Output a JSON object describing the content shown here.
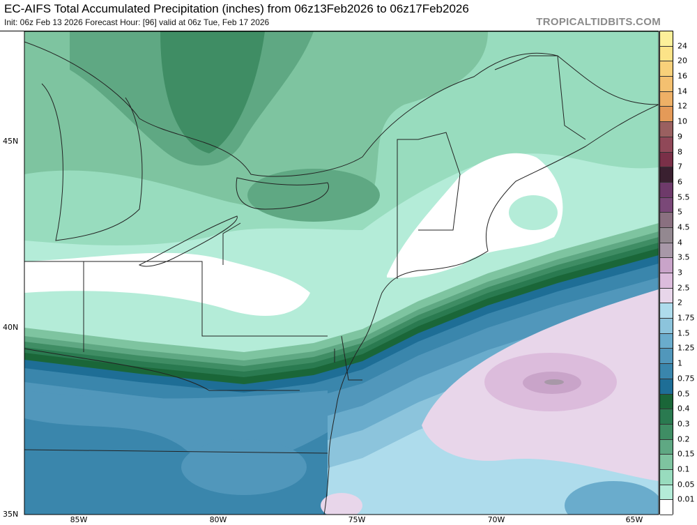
{
  "header": {
    "title": "EC-AIFS Total Accumulated Precipitation (inches) from 06z13Feb2026 to 06z17Feb2026",
    "subtitle": "Init: 06z Feb 13 2026   Forecast Hour: [96]   valid at 06z Tue, Feb 17 2026",
    "brand": "TROPICALTIDBITS.COM"
  },
  "map": {
    "latitude_labels": [
      "45N",
      "40N",
      "35N"
    ],
    "longitude_labels": [
      "85W",
      "80W",
      "75W",
      "70W",
      "65W"
    ]
  },
  "colorbar": {
    "labels": [
      "24",
      "20",
      "16",
      "14",
      "12",
      "10",
      "9",
      "8",
      "7",
      "6",
      "5.5",
      "5",
      "4.5",
      "4",
      "3.5",
      "3",
      "2.5",
      "2",
      "1.75",
      "1.5",
      "1.25",
      "1",
      "0.75",
      "0.5",
      "0.4",
      "0.3",
      "0.2",
      "0.15",
      "0.1",
      "0.05",
      "0.01"
    ],
    "colors": [
      "#fcf09a",
      "#fce388",
      "#f8d07a",
      "#f4c070",
      "#eeb066",
      "#e49a58",
      "#9a6060",
      "#904858",
      "#7a3048",
      "#3a2030",
      "#6e3a6a",
      "#7a4878",
      "#8a7080",
      "#938890",
      "#a898a8",
      "#c9a4c9",
      "#dcbcdc",
      "#e8d6ea",
      "#aedcec",
      "#8cc4dc",
      "#6aaccc",
      "#5197bb",
      "#3a86ac",
      "#1e6e96",
      "#1a6638",
      "#2a7a50",
      "#3f8d64",
      "#5fa883",
      "#7ec4a0",
      "#98dcbe",
      "#b4ecd8",
      "#ffffff"
    ]
  }
}
